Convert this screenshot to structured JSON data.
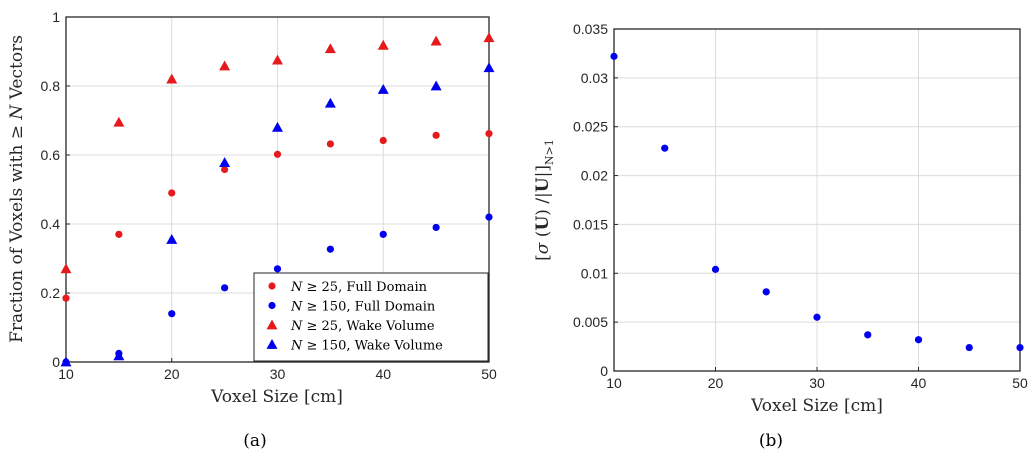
{
  "chart_data": [
    {
      "type": "scatter",
      "panel_label": "(a)",
      "xlabel": "Voxel Size [cm]",
      "ylabel": "Fraction of Voxels with ≥ N Vectors",
      "xlim": [
        10,
        50
      ],
      "ylim": [
        0,
        1
      ],
      "xticks": [
        "10",
        "20",
        "30",
        "40",
        "50"
      ],
      "yticks": [
        "0",
        "0.2",
        "0.4",
        "0.6",
        "0.8",
        "1"
      ],
      "grid": true,
      "legend_position": "bottom-right",
      "x": [
        10,
        15,
        20,
        25,
        30,
        35,
        40,
        45,
        50
      ],
      "series": [
        {
          "name": "N ≥ 25, Full Domain",
          "marker": "circle",
          "color": "#e41a1c",
          "values": [
            0.185,
            0.37,
            0.49,
            0.558,
            0.602,
            0.632,
            0.642,
            0.657,
            0.662
          ]
        },
        {
          "name": "N ≥ 150, Full Domain",
          "marker": "circle",
          "color": "#0000ee",
          "values": [
            0.0,
            0.025,
            0.14,
            0.215,
            0.27,
            0.327,
            0.37,
            0.39,
            0.42
          ]
        },
        {
          "name": "N ≥ 25, Wake Volume",
          "marker": "triangle",
          "color": "#e41a1c",
          "values": [
            0.27,
            0.695,
            0.82,
            0.858,
            0.875,
            0.908,
            0.918,
            0.93,
            0.94
          ]
        },
        {
          "name": "N ≥ 150, Wake Volume",
          "marker": "triangle",
          "color": "#0000ee",
          "values": [
            0.0,
            0.018,
            0.355,
            0.578,
            0.68,
            0.75,
            0.79,
            0.8,
            0.853
          ]
        }
      ]
    },
    {
      "type": "scatter",
      "panel_label": "(b)",
      "xlabel": "Voxel Size [cm]",
      "ylabel": "[σ (U) /|U|]_{N>1}",
      "xlim": [
        10,
        50
      ],
      "ylim": [
        0,
        0.035
      ],
      "xticks": [
        "10",
        "20",
        "30",
        "40",
        "50"
      ],
      "yticks": [
        "0",
        "0.005",
        "0.01",
        "0.015",
        "0.02",
        "0.025",
        "0.03",
        "0.035"
      ],
      "grid": true,
      "x": [
        10,
        15,
        20,
        25,
        30,
        35,
        40,
        45,
        50
      ],
      "series": [
        {
          "marker": "circle",
          "color": "#0000ee",
          "values": [
            0.0322,
            0.0228,
            0.0104,
            0.0081,
            0.0055,
            0.0037,
            0.0032,
            0.0024,
            0.0024
          ]
        }
      ]
    }
  ]
}
